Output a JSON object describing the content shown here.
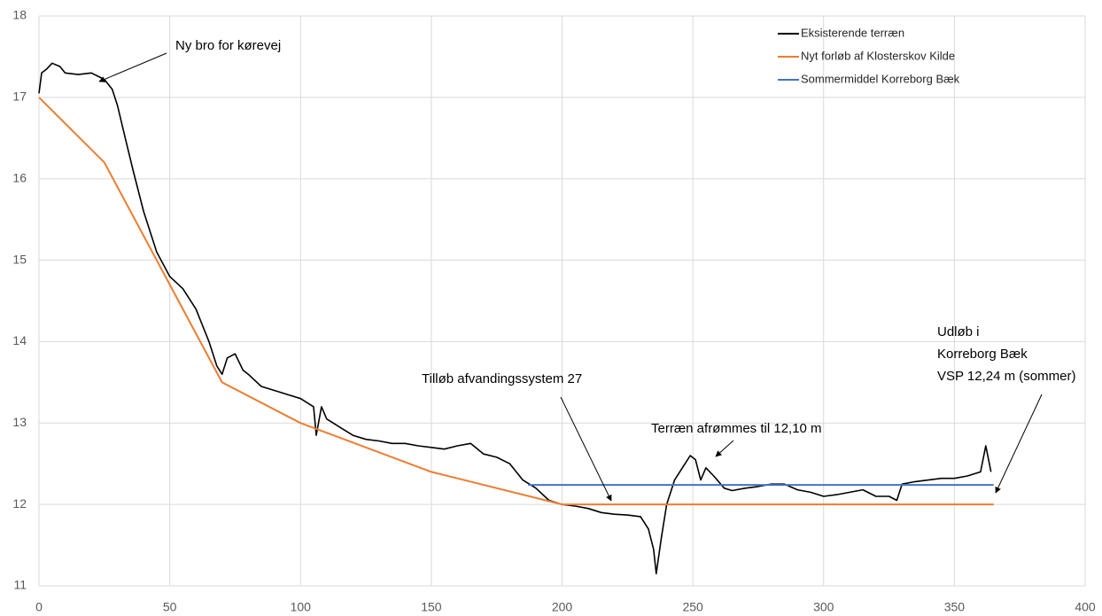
{
  "chart_data": {
    "type": "line",
    "annotations": [
      {
        "lines": [
          "Ny bro for kørevej"
        ]
      },
      {
        "lines": [
          "Tilløb afvandingssystem 27"
        ]
      },
      {
        "lines": [
          "Terræn afrømmes til 12,10 m"
        ]
      },
      {
        "lines": [
          "Udløb i",
          "Korreborg Bæk",
          "VSP 12,24 m (sommer)"
        ]
      }
    ],
    "xlim": [
      0,
      400
    ],
    "xticks": [
      0,
      50,
      100,
      150,
      200,
      250,
      300,
      350,
      400
    ],
    "ylim": [
      11,
      18
    ],
    "yticks": [
      11,
      12,
      13,
      14,
      15,
      16,
      17,
      18
    ],
    "grid": true,
    "legend": "top-right",
    "series": [
      {
        "name": "Eksisterende terræn",
        "color": "#000000",
        "x": [
          0,
          1,
          3,
          5,
          8,
          10,
          15,
          20,
          25,
          28,
          30,
          33,
          36,
          40,
          45,
          50,
          55,
          60,
          65,
          68,
          70,
          72,
          75,
          78,
          80,
          85,
          90,
          95,
          100,
          105,
          106,
          108,
          110,
          115,
          120,
          125,
          130,
          135,
          140,
          145,
          150,
          155,
          160,
          165,
          170,
          175,
          180,
          185,
          190,
          195,
          200,
          205,
          210,
          215,
          220,
          225,
          230,
          233,
          235,
          236,
          238,
          240,
          243,
          246,
          249,
          251,
          253,
          255,
          258,
          262,
          265,
          270,
          275,
          280,
          285,
          290,
          295,
          300,
          305,
          310,
          315,
          320,
          325,
          328,
          330,
          335,
          340,
          345,
          350,
          355,
          360,
          362,
          364
        ],
        "values": [
          17.05,
          17.3,
          17.35,
          17.42,
          17.38,
          17.3,
          17.28,
          17.3,
          17.22,
          17.1,
          16.9,
          16.5,
          16.1,
          15.6,
          15.1,
          14.8,
          14.65,
          14.4,
          14.0,
          13.7,
          13.6,
          13.8,
          13.85,
          13.65,
          13.6,
          13.45,
          13.4,
          13.35,
          13.3,
          13.2,
          12.85,
          13.2,
          13.05,
          12.95,
          12.85,
          12.8,
          12.78,
          12.75,
          12.75,
          12.72,
          12.7,
          12.68,
          12.72,
          12.75,
          12.62,
          12.58,
          12.5,
          12.3,
          12.2,
          12.05,
          12.0,
          11.98,
          11.95,
          11.9,
          11.88,
          11.87,
          11.85,
          11.7,
          11.45,
          11.15,
          11.6,
          12.0,
          12.3,
          12.45,
          12.6,
          12.55,
          12.3,
          12.45,
          12.35,
          12.2,
          12.17,
          12.2,
          12.22,
          12.25,
          12.25,
          12.18,
          12.15,
          12.1,
          12.12,
          12.15,
          12.18,
          12.1,
          12.1,
          12.05,
          12.25,
          12.28,
          12.3,
          12.32,
          12.32,
          12.35,
          12.4,
          12.72,
          12.4
        ]
      },
      {
        "name": "Nyt forløb af Klosterskov Kilde",
        "color": "#ed7d31",
        "x": [
          0,
          25,
          70,
          100,
          150,
          200,
          365
        ],
        "values": [
          17.0,
          16.2,
          13.5,
          13.0,
          12.4,
          12.0,
          12.0
        ]
      },
      {
        "name": "Sommermiddel Korreborg Bæk",
        "color": "#4472c4",
        "x": [
          187,
          365
        ],
        "values": [
          12.24,
          12.24
        ]
      }
    ]
  }
}
